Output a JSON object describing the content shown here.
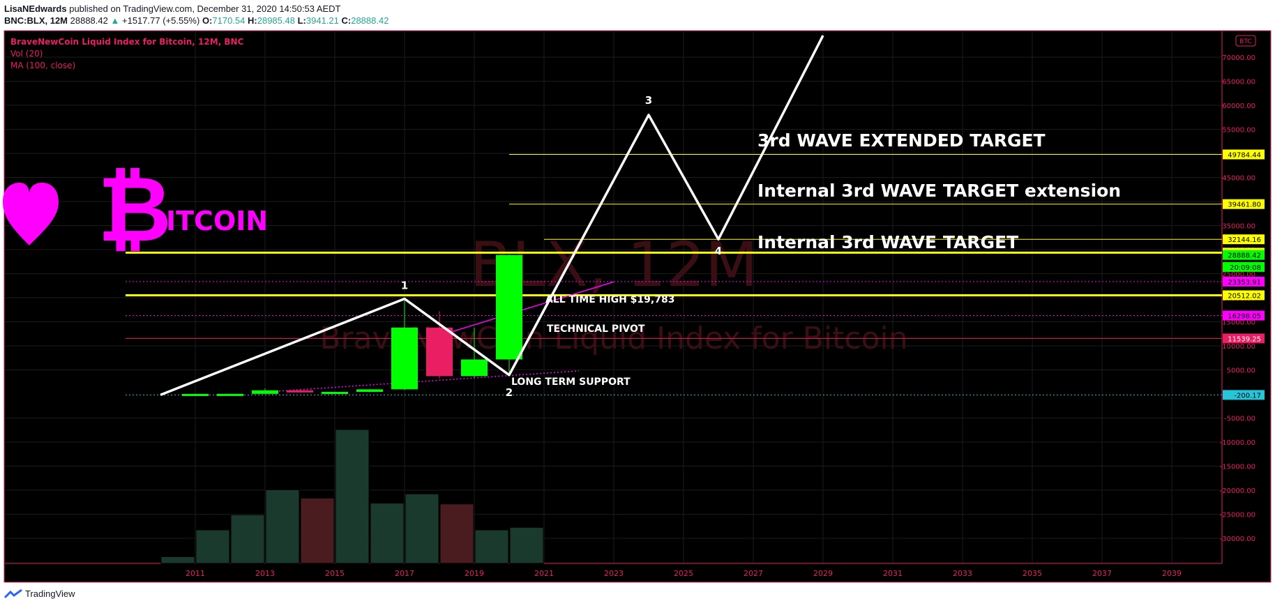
{
  "header": {
    "author": "LisaNEdwards",
    "published": "published on TradingView.com, December 31, 2020 14:50:53 AEDT",
    "symbol": "BNC:BLX, 12M",
    "last": "28888.42",
    "change": "+1517.77 (+5.55%)",
    "o_label": "O:",
    "o": "7170.54",
    "h_label": "H:",
    "h": "28985.48",
    "l_label": "L:",
    "l": "3941.21",
    "c_label": "C:",
    "c": "28888.42"
  },
  "legend": {
    "title": "BraveNewCoin Liquid Index for Bitcoin, 12M, BNC",
    "vol": "Vol (20)",
    "ma": "MA (100, close)"
  },
  "watermark": {
    "big": "BLX, 12M",
    "sub": "BraveNewCoin Liquid Index for Bitcoin"
  },
  "currency_badge": "BTC",
  "footer": {
    "brand": "TradingView"
  },
  "overlay": {
    "heart_icon": "heart-icon",
    "bitcoin_symbol": "₿",
    "bitcoin_text": "ITCOIN",
    "colors": {
      "magenta": "#ff00ff",
      "yellow": "#ffff00",
      "green": "#00ff00",
      "red": "#e91e63",
      "bg": "#000000"
    }
  },
  "annotations": {
    "wave_ext": "3rd WAVE EXTENDED TARGET",
    "wave_int_ext": "Internal 3rd WAVE TARGET extension",
    "wave_int": "Internal 3rd WAVE TARGET",
    "ath": "ALL TIME HIGH $19,783",
    "pivot": "TECHNICAL PIVOT",
    "support": "LONG TERM SUPPORT",
    "wave_labels": [
      "1",
      "2",
      "3",
      "4"
    ]
  },
  "chart_data": {
    "type": "candlestick",
    "title": "BraveNewCoin Liquid Index for Bitcoin, 12M, BNC",
    "y_ticks": [
      -30000,
      -25000,
      -20000,
      -15000,
      -10000,
      -5000,
      5000,
      10000,
      15000,
      20000,
      25000,
      30000,
      35000,
      40000,
      45000,
      50000,
      55000,
      60000,
      65000,
      70000
    ],
    "y_tick_labels": [
      "-30000.00",
      "-25000.00",
      "-20000.00",
      "-15000.00",
      "-10000.00",
      "-5000.00",
      "5000.00",
      "10000.00",
      "15000.00",
      "20000.00",
      "25000.00",
      "30000.00",
      "35000.00",
      "40000.00",
      "45000.00",
      "50000.00",
      "55000.00",
      "60000.00",
      "65000.00",
      "70000.00"
    ],
    "x_ticks": [
      2011,
      2013,
      2015,
      2017,
      2019,
      2021,
      2023,
      2025,
      2027,
      2029,
      2031,
      2033,
      2035,
      2037,
      2039
    ],
    "ylim": [
      -38000,
      75000
    ],
    "candles": [
      {
        "year": 2011,
        "open": 0.3,
        "high": 30,
        "low": 0.3,
        "close": 5
      },
      {
        "year": 2012,
        "open": 5,
        "high": 15,
        "low": 4,
        "close": 13
      },
      {
        "year": 2013,
        "open": 13,
        "high": 1150,
        "low": 13,
        "close": 750
      },
      {
        "year": 2014,
        "open": 750,
        "high": 1000,
        "low": 300,
        "close": 320
      },
      {
        "year": 2015,
        "open": 320,
        "high": 470,
        "low": 170,
        "close": 430
      },
      {
        "year": 2016,
        "open": 430,
        "high": 980,
        "low": 360,
        "close": 960
      },
      {
        "year": 2017,
        "open": 960,
        "high": 19783,
        "low": 780,
        "close": 13800
      },
      {
        "year": 2018,
        "open": 13800,
        "high": 17200,
        "low": 3200,
        "close": 3700
      },
      {
        "year": 2019,
        "open": 3700,
        "high": 13800,
        "low": 3400,
        "close": 7170
      },
      {
        "year": 2020,
        "open": 7170.54,
        "high": 28985.48,
        "low": 3941.21,
        "close": 28888.42
      }
    ],
    "volume_bars": [
      {
        "year": 2010,
        "value": 8,
        "up": true
      },
      {
        "year": 2011,
        "value": 40,
        "up": true
      },
      {
        "year": 2012,
        "value": 58,
        "up": true
      },
      {
        "year": 2013,
        "value": 88,
        "up": true
      },
      {
        "year": 2014,
        "value": 78,
        "up": false
      },
      {
        "year": 2015,
        "value": 160,
        "up": true
      },
      {
        "year": 2016,
        "value": 72,
        "up": true
      },
      {
        "year": 2017,
        "value": 83,
        "up": true
      },
      {
        "year": 2018,
        "value": 71,
        "up": false
      },
      {
        "year": 2019,
        "value": 40,
        "up": true
      },
      {
        "year": 2020,
        "value": 43,
        "up": true
      }
    ],
    "wave_path": [
      {
        "label": "",
        "year": 2010.0,
        "value": -200
      },
      {
        "label": "1",
        "year": 2017.0,
        "value": 19783
      },
      {
        "label": "2",
        "year": 2020.0,
        "value": 3941
      },
      {
        "label": "3",
        "year": 2024.0,
        "value": 58000
      },
      {
        "label": "4",
        "year": 2026.0,
        "value": 32144
      },
      {
        "label": "",
        "year": 2029.0,
        "value": 74500
      }
    ],
    "horizontal_levels": [
      {
        "value": 49784.44,
        "label": "49784.44",
        "color": "#ffff00",
        "from_year": 2020.0,
        "width": 1
      },
      {
        "value": 39461.8,
        "label": "39461.80",
        "color": "#ffff00",
        "from_year": 2020.0,
        "width": 1
      },
      {
        "value": 32144.16,
        "label": "32144.16",
        "color": "#ffff00",
        "from_year": 2021.0,
        "width": 1
      },
      {
        "value": 29363.18,
        "label": "29363.18",
        "color": "#ffff00",
        "from_year": 2009.0,
        "width": 3
      },
      {
        "value": 20512.02,
        "label": "20512.02",
        "color": "#ffff00",
        "from_year": 2009.0,
        "width": 3
      },
      {
        "value": 11539.25,
        "label": "11539.25",
        "color": "#e91e63",
        "from_year": 2009.0,
        "width": 1
      },
      {
        "value": -200.17,
        "label": "-200.17",
        "color": "#26c6da",
        "from_year": 2009.0,
        "width": 1,
        "dotted": true
      },
      {
        "value": 23353.91,
        "label": "23353.91",
        "color": "#ff00ff",
        "from_year": 2009.0,
        "width": 1,
        "dotted": true
      },
      {
        "value": 16298.05,
        "label": "16298.05",
        "color": "#ff00ff",
        "from_year": 2009.0,
        "width": 1,
        "dotted": true
      }
    ],
    "price_tags": [
      {
        "value": 28888.42,
        "label": "28888.42",
        "bg": "#00ff00",
        "fg": "#000000"
      },
      {
        "value": 26400,
        "label": "20:09:08",
        "bg": "#00ff00",
        "fg": "#000000"
      }
    ],
    "trendlines": [
      {
        "color": "#ff00ff",
        "dotted": false,
        "from": {
          "year": 2018.3,
          "value": 12800
        },
        "to": {
          "year": 2023.0,
          "value": 23300
        }
      },
      {
        "color": "#ff00ff",
        "dotted": true,
        "from": {
          "year": 2013.0,
          "value": 400
        },
        "to": {
          "year": 2022.0,
          "value": 4800
        }
      }
    ]
  }
}
